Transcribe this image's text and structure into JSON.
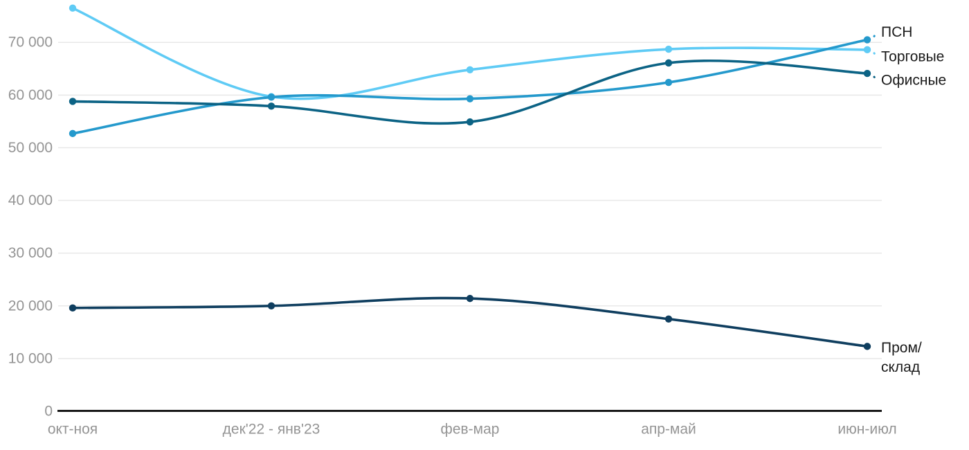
{
  "chart_data": {
    "type": "line",
    "title": "",
    "xlabel": "",
    "ylabel": "",
    "grid": "horizontal",
    "legend_position": "right-inline-labels",
    "categories": [
      "окт-ноя",
      "дек'22 - янв'23",
      "фев-мар",
      "апр-май",
      "июн-июл"
    ],
    "series": [
      {
        "name": "Торговые",
        "color": "#5FCBF5",
        "values": [
          76500,
          59700,
          64800,
          68700,
          68600
        ]
      },
      {
        "name": "ПСН",
        "color": "#2499CC",
        "values": [
          52700,
          59600,
          59300,
          62400,
          70500
        ]
      },
      {
        "name": "Офисные",
        "color": "#0C6385",
        "values": [
          58800,
          57900,
          54900,
          66100,
          64100
        ]
      },
      {
        "name": "Пром/склад",
        "color": "#0F3E5F",
        "values": [
          19600,
          20000,
          21400,
          17500,
          12300
        ]
      }
    ],
    "ylim": [
      0,
      77000
    ],
    "yticks": {
      "values": [
        0,
        10000,
        20000,
        30000,
        40000,
        50000,
        60000,
        70000
      ],
      "labels": [
        "0",
        "10 000",
        "20 000",
        "30 000",
        "40 000",
        "50 000",
        "60 000",
        "70 000"
      ]
    }
  },
  "colors": {
    "background": "#ffffff",
    "gridline": "#e8e8e8",
    "axis_line": "#1a1a1a",
    "tick_text": "#949494",
    "series_label_text": "#1a1a1a"
  }
}
